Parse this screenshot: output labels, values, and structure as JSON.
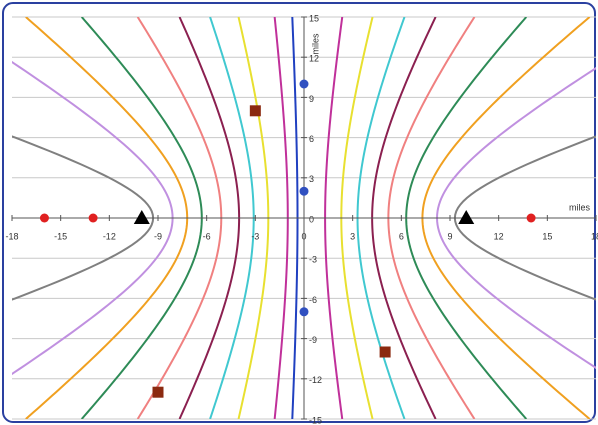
{
  "chart_data": {
    "type": "scatter",
    "xlabel": "miles",
    "ylabel": "miles",
    "xlim": [
      -18,
      18
    ],
    "ylim": [
      -15,
      15
    ],
    "xticks": [
      -18,
      -15,
      -12,
      -9,
      -6,
      -3,
      0,
      3,
      6,
      9,
      12,
      15,
      18
    ],
    "yticks": [
      -15,
      -12,
      -9,
      -6,
      -3,
      0,
      3,
      6,
      9,
      12,
      15
    ],
    "grid": true,
    "series": [
      {
        "color": "#e02020",
        "marker": "circle",
        "x": [
          -16,
          -13,
          14
        ],
        "y": [
          0,
          0,
          0
        ]
      },
      {
        "color": "#000000",
        "marker": "triangle",
        "x": [
          -10,
          10
        ],
        "y": [
          0,
          0
        ]
      },
      {
        "color": "#3050c0",
        "marker": "circle",
        "x": [
          0,
          0,
          0
        ],
        "y": [
          10,
          2,
          -7
        ]
      },
      {
        "color": "#8b2a10",
        "marker": "square",
        "x": [
          -3,
          5,
          -9
        ],
        "y": [
          8,
          -10,
          -13
        ]
      }
    ],
    "curves": [
      {
        "color": "#2040c0",
        "vertex": -0.4
      },
      {
        "color": "#c0309a",
        "vertex": -1
      },
      {
        "color": "#e8e030",
        "vertex": -2.2
      },
      {
        "color": "#40c8d0",
        "vertex": -3.1
      },
      {
        "color": "#8b2050",
        "vertex": -4
      },
      {
        "color": "#f08080",
        "vertex": -5.1
      },
      {
        "color": "#2e8b57",
        "vertex": -6.3
      },
      {
        "color": "#f0a020",
        "vertex": -7.2
      },
      {
        "color": "#c090e0",
        "vertex": -8.1
      },
      {
        "color": "#808080",
        "vertex": -9.3
      },
      {
        "color": "#c0309a",
        "vertex": 1.3
      },
      {
        "color": "#e8e030",
        "vertex": 2.3
      },
      {
        "color": "#40c8d0",
        "vertex": 3.3
      },
      {
        "color": "#8b2050",
        "vertex": 4.2
      },
      {
        "color": "#f08080",
        "vertex": 5.2
      },
      {
        "color": "#2e8b57",
        "vertex": 6.3
      },
      {
        "color": "#f0a020",
        "vertex": 7.3
      },
      {
        "color": "#c090e0",
        "vertex": 8.2
      },
      {
        "color": "#808080",
        "vertex": 9.3
      }
    ]
  }
}
